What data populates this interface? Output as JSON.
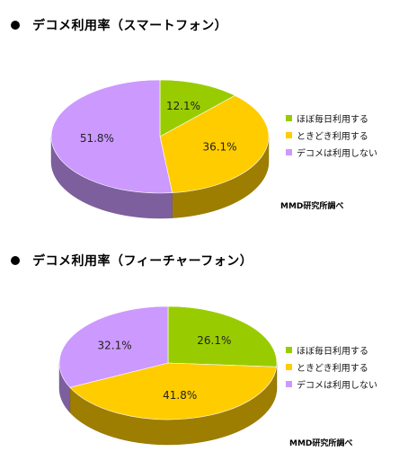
{
  "chart_data": [
    {
      "type": "pie",
      "title": "デコメ利用率（スマートフォン）",
      "series": [
        {
          "label": "ほぼ毎日利用する",
          "value": 12.1,
          "display": "12.1%",
          "color": "#99cc00"
        },
        {
          "label": "ときどき利用する",
          "value": 36.1,
          "display": "36.1%",
          "color": "#ffcc00"
        },
        {
          "label": "デコメは利用しない",
          "value": 51.8,
          "display": "51.8%",
          "color": "#cc99ff"
        }
      ],
      "legend_position": "right",
      "source": "MMD研究所調べ"
    },
    {
      "type": "pie",
      "title": "デコメ利用率（フィーチャーフォン）",
      "series": [
        {
          "label": "ほぼ毎日利用する",
          "value": 26.1,
          "display": "26.1%",
          "color": "#99cc00"
        },
        {
          "label": "ときどき利用する",
          "value": 41.8,
          "display": "41.8%",
          "color": "#ffcc00"
        },
        {
          "label": "デコメは利用しない",
          "value": 32.1,
          "display": "32.1%",
          "color": "#cc99ff"
        }
      ],
      "legend_position": "right",
      "source": "MMD研究所調べ"
    }
  ]
}
